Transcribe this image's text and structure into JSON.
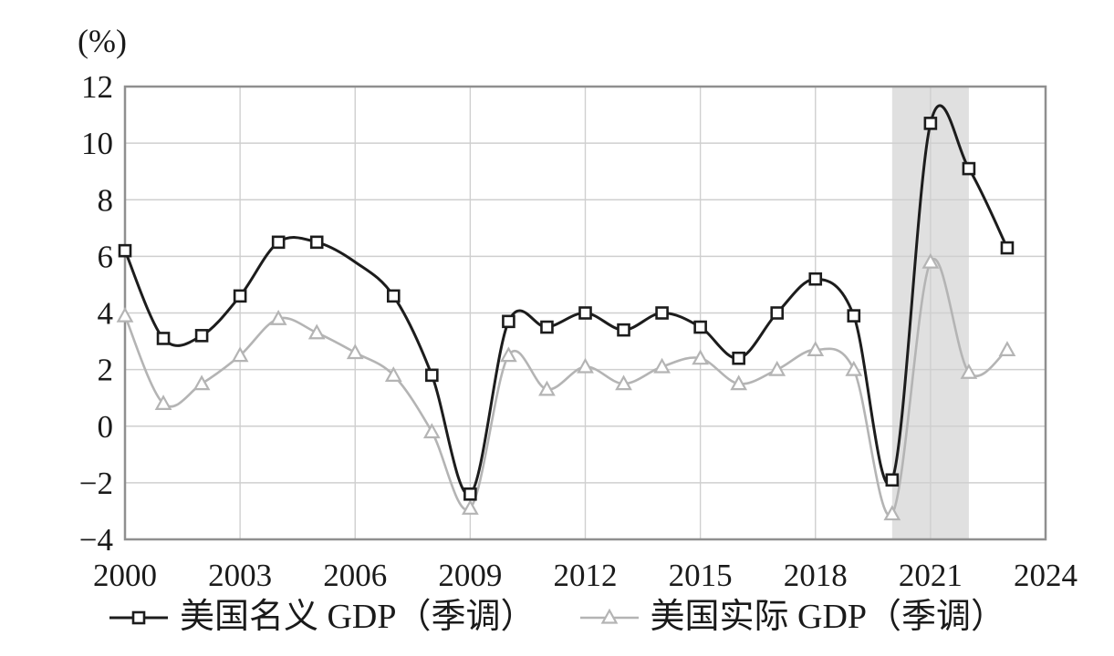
{
  "chart_data": {
    "type": "line",
    "title": "",
    "xlabel": "",
    "ylabel": "(%)",
    "x": [
      2000,
      2001,
      2002,
      2003,
      2004,
      2005,
      2006,
      2007,
      2008,
      2009,
      2010,
      2011,
      2012,
      2013,
      2014,
      2015,
      2016,
      2017,
      2018,
      2019,
      2020,
      2021,
      2022,
      2023
    ],
    "series": [
      {
        "name": "美国名义 GDP（季调）",
        "color": "#1c1c1c",
        "marker": "square",
        "marker_fill": "#ffffff",
        "marker_skip_x": [
          2006
        ],
        "values": [
          6.2,
          3.1,
          3.2,
          4.6,
          6.5,
          6.5,
          5.8,
          4.6,
          1.8,
          -2.4,
          3.7,
          3.5,
          4.0,
          3.4,
          4.0,
          3.5,
          2.4,
          4.0,
          5.2,
          3.9,
          -1.9,
          10.7,
          9.1,
          6.3
        ]
      },
      {
        "name": "美国实际 GDP（季调）",
        "color": "#b4b4b4",
        "marker": "triangle-up",
        "marker_fill": "#ffffff",
        "marker_skip_x": [],
        "values": [
          3.9,
          0.8,
          1.5,
          2.5,
          3.8,
          3.3,
          2.6,
          1.8,
          -0.2,
          -2.9,
          2.5,
          1.3,
          2.1,
          1.5,
          2.1,
          2.4,
          1.5,
          2.0,
          2.7,
          2.0,
          -3.1,
          5.8,
          1.9,
          2.7
        ]
      }
    ],
    "xlim": [
      2000,
      2024
    ],
    "ylim": [
      -4,
      12
    ],
    "x_tick_values": [
      2000,
      2003,
      2006,
      2009,
      2012,
      2015,
      2018,
      2021,
      2024
    ],
    "x_tick_labels": [
      "2000",
      "2003",
      "2006",
      "2009",
      "2012",
      "2015",
      "2018",
      "2021",
      "2024"
    ],
    "y_tick_values": [
      12,
      10,
      8,
      6,
      4,
      2,
      0,
      -2,
      -4
    ],
    "y_tick_labels": [
      "12",
      "10",
      "8",
      "6",
      "4",
      "2",
      "0",
      "−2",
      "−4"
    ],
    "grid": true,
    "smooth": true,
    "line_interpolation": "smooth",
    "legend_position": "bottom",
    "highlight_band": {
      "x_start": 2020,
      "x_end": 2022,
      "color": "#e0e0e0"
    },
    "colors": {
      "frame": "#8f8f8f",
      "gridline": "#cfcfcf",
      "text": "#1a1a1a",
      "background": "#ffffff"
    }
  },
  "legend": {
    "items": [
      {
        "label": "美国名义 GDP（季调）"
      },
      {
        "label": "美国实际 GDP（季调）"
      }
    ]
  }
}
